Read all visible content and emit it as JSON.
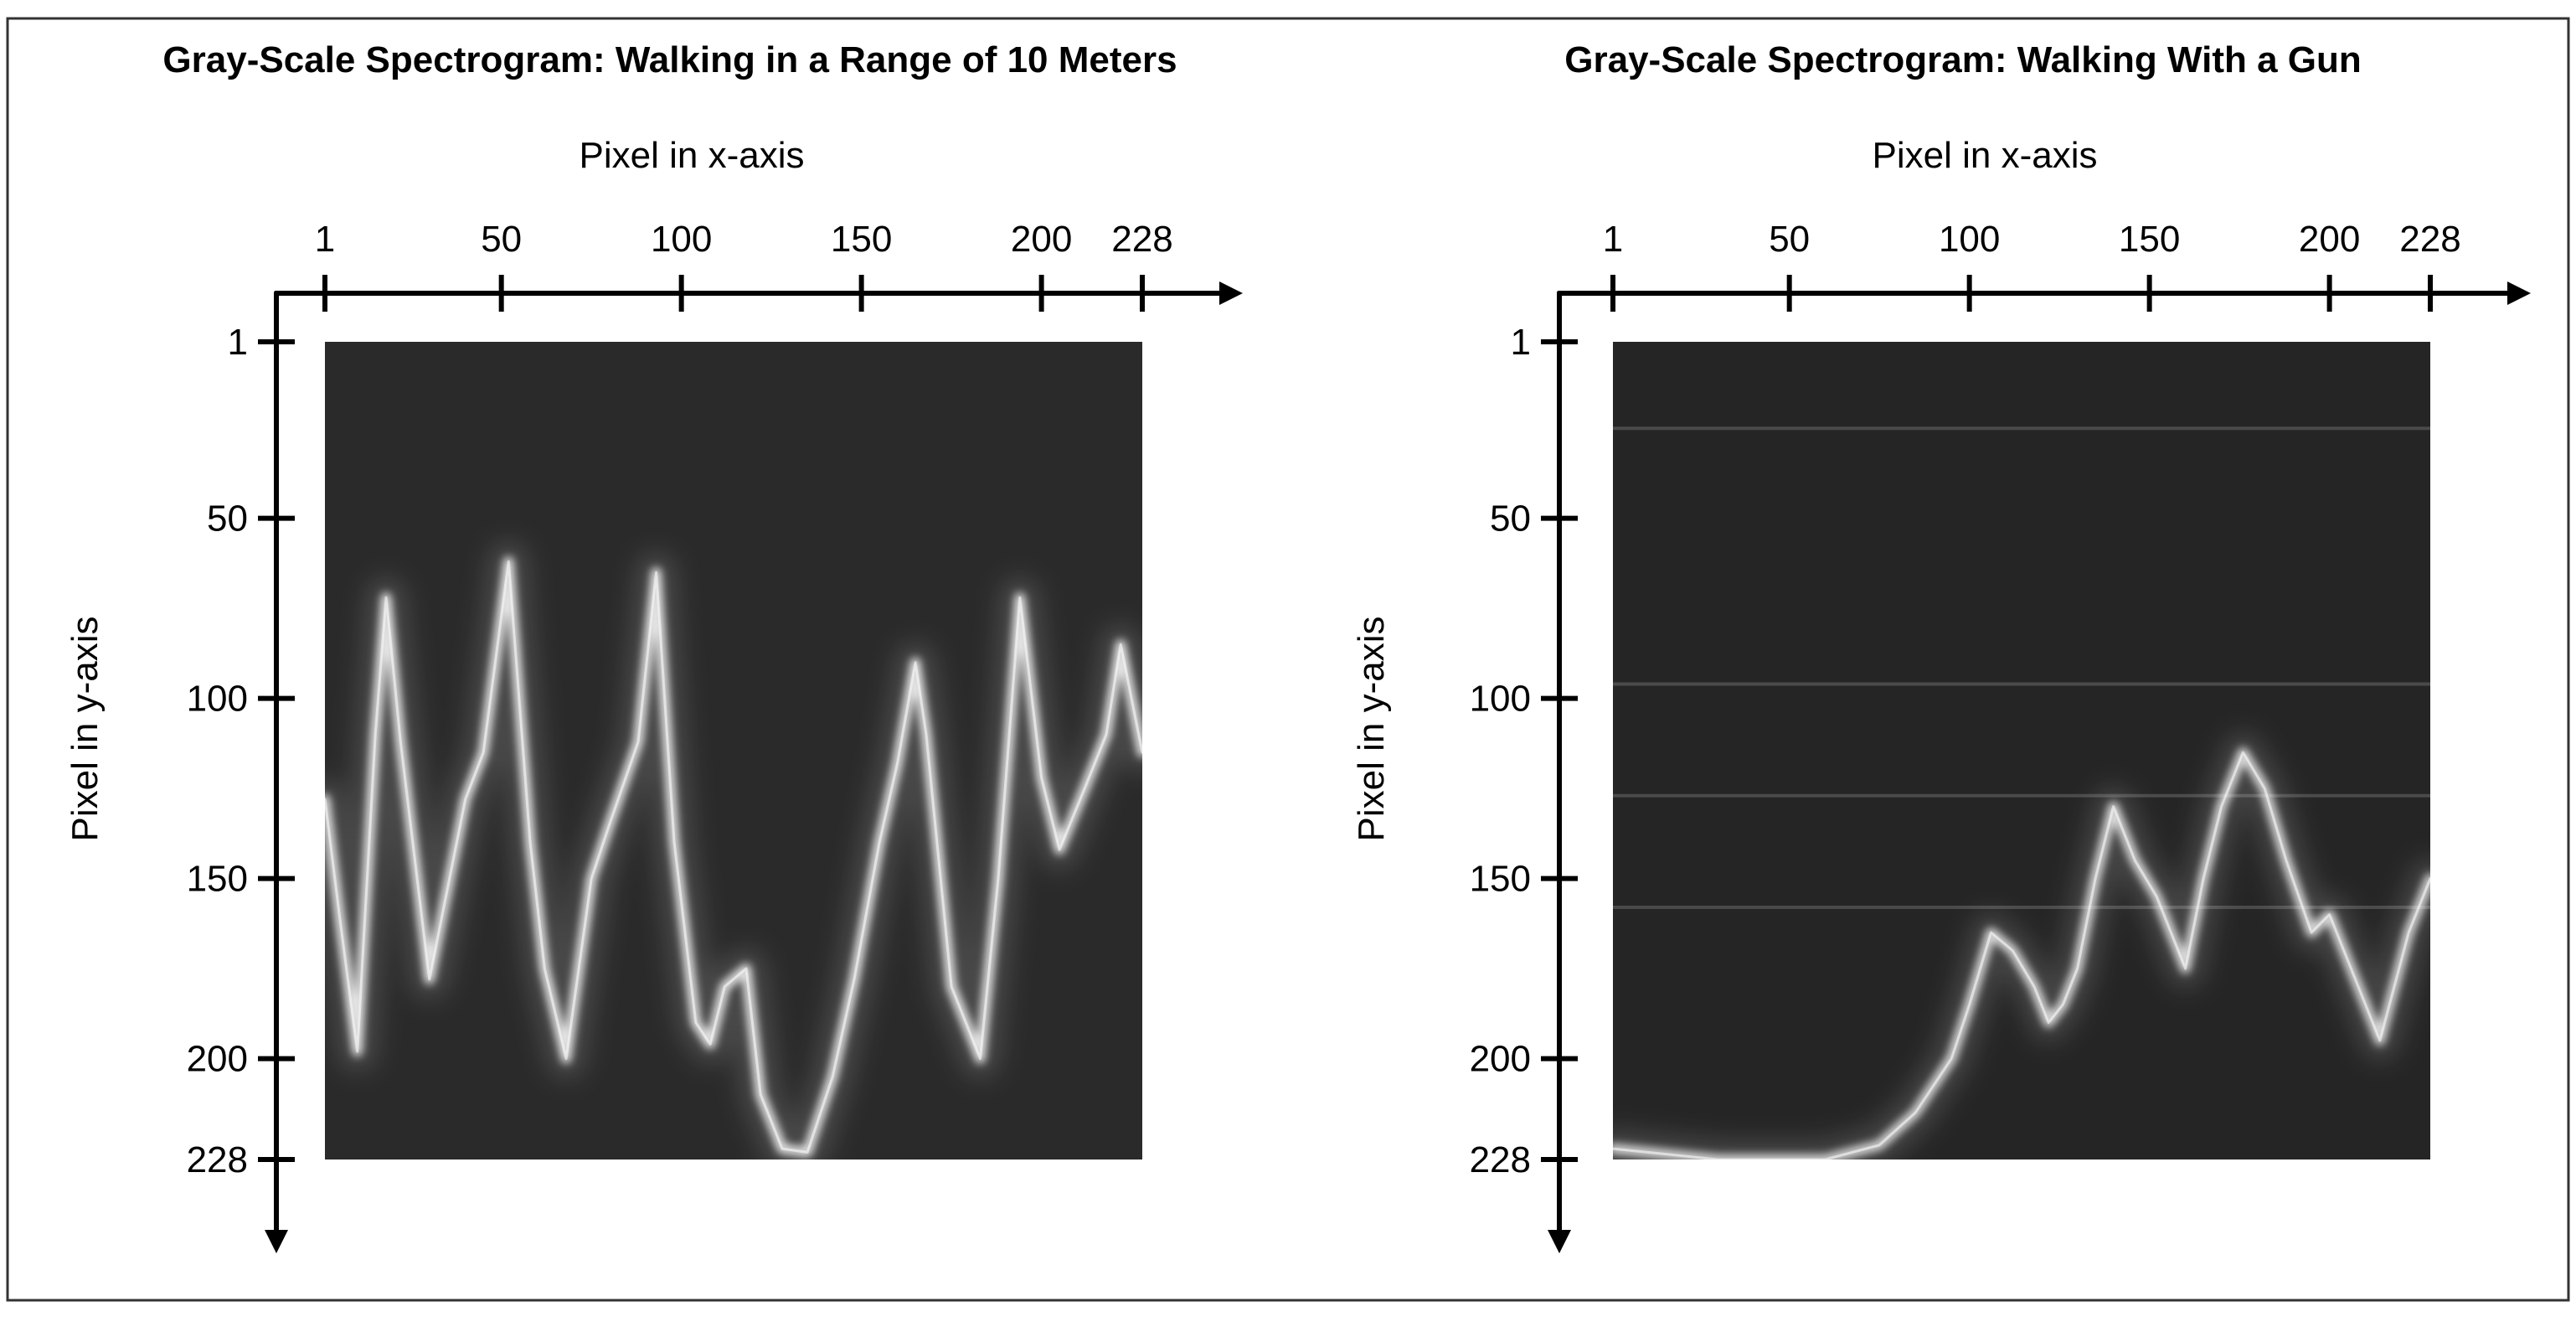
{
  "chart_data": [
    {
      "type": "heatmap",
      "title": "Gray-Scale Spectrogram: Walking in a Range of 10 Meters",
      "xlabel": "Pixel in x-axis",
      "ylabel": "Pixel in y-axis",
      "x_ticks": [
        1,
        50,
        100,
        150,
        200,
        228
      ],
      "y_ticks": [
        1,
        50,
        100,
        150,
        200,
        228
      ],
      "xlim": [
        1,
        228
      ],
      "ylim": [
        1,
        228
      ],
      "background_color": "#2a2a2a",
      "signal_color": "#ffffff",
      "ridges": [
        {
          "name": "",
          "points": [
            [
              1,
              128
            ],
            [
              5,
              160
            ],
            [
              10,
              198
            ],
            [
              15,
              110
            ],
            [
              18,
              72
            ],
            [
              22,
              112
            ],
            [
              30,
              178
            ],
            [
              40,
              128
            ],
            [
              45,
              115
            ],
            [
              52,
              62
            ],
            [
              58,
              140
            ],
            [
              62,
              175
            ],
            [
              68,
              200
            ],
            [
              75,
              150
            ],
            [
              80,
              135
            ],
            [
              88,
              112
            ],
            [
              93,
              65
            ],
            [
              98,
              140
            ],
            [
              104,
              190
            ],
            [
              108,
              196
            ],
            [
              112,
              180
            ],
            [
              118,
              175
            ],
            [
              122,
              210
            ],
            [
              128,
              225
            ],
            [
              135,
              226
            ],
            [
              142,
              205
            ],
            [
              148,
              178
            ],
            [
              155,
              140
            ],
            [
              160,
              118
            ],
            [
              165,
              90
            ],
            [
              168,
              110
            ],
            [
              175,
              180
            ],
            [
              183,
              200
            ],
            [
              188,
              150
            ],
            [
              194,
              72
            ],
            [
              200,
              122
            ],
            [
              205,
              142
            ],
            [
              212,
              125
            ],
            [
              218,
              110
            ],
            [
              222,
              85
            ],
            [
              228,
              115
            ]
          ],
          "intensity": 0.85
        }
      ]
    },
    {
      "type": "heatmap",
      "title": "Gray-Scale Spectrogram: Walking With a Gun",
      "xlabel": "Pixel in x-axis",
      "ylabel": "Pixel in y-axis",
      "x_ticks": [
        1,
        50,
        100,
        150,
        200,
        228
      ],
      "y_ticks": [
        1,
        50,
        100,
        150,
        200,
        228
      ],
      "xlim": [
        1,
        228
      ],
      "ylim": [
        1,
        228
      ],
      "background_color": "#252525",
      "signal_color": "#ffffff",
      "horizontal_lines_y": [
        25,
        96,
        127,
        158
      ],
      "ridges": [
        {
          "name": "",
          "points": [
            [
              1,
              225
            ],
            [
              30,
              228
            ],
            [
              60,
              228
            ],
            [
              75,
              224
            ],
            [
              85,
              215
            ],
            [
              95,
              200
            ],
            [
              100,
              185
            ],
            [
              106,
              165
            ],
            [
              112,
              170
            ],
            [
              118,
              180
            ],
            [
              122,
              190
            ],
            [
              126,
              185
            ],
            [
              130,
              175
            ],
            [
              135,
              150
            ],
            [
              140,
              130
            ],
            [
              146,
              145
            ],
            [
              152,
              155
            ],
            [
              160,
              175
            ],
            [
              165,
              150
            ],
            [
              170,
              130
            ],
            [
              176,
              115
            ],
            [
              182,
              125
            ],
            [
              188,
              145
            ],
            [
              195,
              165
            ],
            [
              200,
              160
            ],
            [
              206,
              175
            ],
            [
              214,
              195
            ],
            [
              222,
              165
            ],
            [
              228,
              150
            ]
          ],
          "intensity": 0.8
        }
      ]
    }
  ]
}
